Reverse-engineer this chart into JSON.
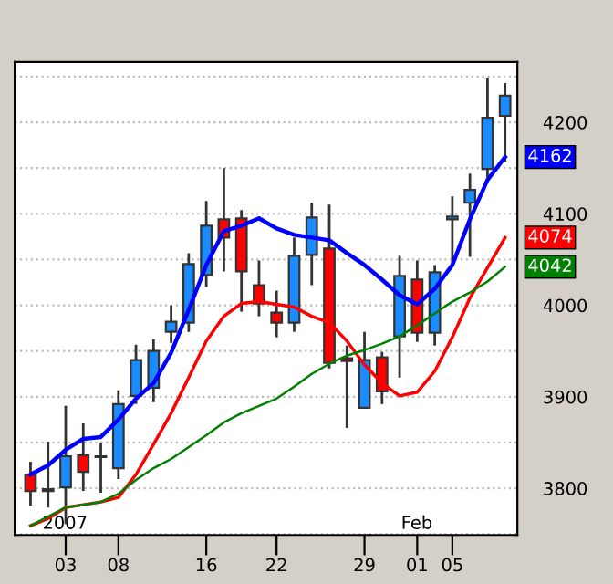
{
  "chart_data": {
    "type": "candlestick",
    "categories": [
      null,
      null,
      "03",
      null,
      null,
      "08",
      null,
      null,
      null,
      null,
      "16",
      null,
      null,
      null,
      "22",
      null,
      null,
      null,
      null,
      "29",
      null,
      null,
      "01",
      null,
      "05",
      null,
      null,
      null
    ],
    "ohlc": [
      [
        3815,
        3829,
        3781,
        3797
      ],
      [
        3799,
        3851,
        3779,
        3797
      ],
      [
        3801,
        3890,
        3761,
        3835
      ],
      [
        3836,
        3871,
        3797,
        3818
      ],
      [
        3835,
        3850,
        3795,
        3834
      ],
      [
        3822,
        3907,
        3810,
        3892
      ],
      [
        3901,
        3957,
        3892,
        3940
      ],
      [
        3910,
        3963,
        3894,
        3950
      ],
      [
        3971,
        4000,
        3959,
        3982
      ],
      [
        3981,
        4057,
        3971,
        4045
      ],
      [
        4033,
        4114,
        4020,
        4087
      ],
      [
        4094,
        4150,
        4037,
        4074
      ],
      [
        4095,
        4104,
        3993,
        4037
      ],
      [
        4022,
        4049,
        3988,
        4002
      ],
      [
        3992,
        4016,
        3965,
        3981
      ],
      [
        3981,
        4074,
        3971,
        4054
      ],
      [
        4055,
        4112,
        4022,
        4096
      ],
      [
        4062,
        4110,
        3931,
        3937
      ],
      [
        3942,
        3956,
        3866,
        3939
      ],
      [
        3888,
        3971,
        3887,
        3940
      ],
      [
        3943,
        3949,
        3892,
        3906
      ],
      [
        3966,
        4054,
        3921,
        4032
      ],
      [
        4028,
        4049,
        3960,
        3970
      ],
      [
        3970,
        4044,
        3956,
        4036
      ],
      [
        4094,
        4119,
        4044,
        4097
      ],
      [
        4112,
        4144,
        4053,
        4126
      ],
      [
        4149,
        4248,
        4140,
        4205
      ],
      [
        4207,
        4243,
        4157,
        4229
      ]
    ],
    "colors": [
      "#ff0000",
      "#ff0000",
      "#1a8cff",
      "#ff0000",
      "#ff0000",
      "#1a8cff",
      "#1a8cff",
      "#1a8cff",
      "#1a8cff",
      "#1a8cff",
      "#1a8cff",
      "#ff0000",
      "#ff0000",
      "#ff0000",
      "#ff0000",
      "#1a8cff",
      "#1a8cff",
      "#ff0000",
      "#ff0000",
      "#1a8cff",
      "#ff0000",
      "#1a8cff",
      "#ff0000",
      "#1a8cff",
      "#1a8cff",
      "#1a8cff",
      "#1a8cff",
      "#1a8cff"
    ],
    "series": [
      {
        "type": "line",
        "color": "#0000ff",
        "values": [
          3815,
          3825,
          3842,
          3854,
          3856,
          3875,
          3898,
          3915,
          3948,
          3995,
          4044,
          4081,
          4087,
          4095,
          4084,
          4077,
          4074,
          4071,
          4057,
          4044,
          4028,
          4011,
          4001,
          4018,
          4044,
          4094,
          4137,
          4162
        ],
        "value_labels": [
          null,
          null,
          null,
          null,
          null,
          null,
          null,
          null,
          null,
          null,
          null,
          null,
          null,
          null,
          null,
          null,
          null,
          null,
          null,
          null,
          null,
          null,
          null,
          null,
          null,
          null,
          null,
          "4162"
        ]
      },
      {
        "type": "line",
        "color": "#ff0000",
        "values": [
          3759,
          3767,
          3779,
          3782,
          3785,
          3790,
          3815,
          3848,
          3882,
          3921,
          3961,
          3988,
          4002,
          4004,
          4001,
          3998,
          3988,
          3981,
          3961,
          3935,
          3915,
          3901,
          3905,
          3928,
          3965,
          4008,
          4041,
          4074
        ],
        "value_labels": [
          null,
          null,
          null,
          null,
          null,
          null,
          null,
          null,
          null,
          null,
          null,
          null,
          null,
          null,
          null,
          null,
          null,
          null,
          null,
          null,
          null,
          null,
          null,
          null,
          null,
          null,
          null,
          "4074"
        ]
      },
      {
        "type": "line",
        "color": "#008000",
        "values": [
          3759,
          3769,
          3779,
          3782,
          3785,
          3794,
          3809,
          3822,
          3832,
          3845,
          3858,
          3872,
          3882,
          3890,
          3898,
          3911,
          3925,
          3936,
          3945,
          3951,
          3958,
          3966,
          3978,
          3991,
          4004,
          4014,
          4026,
          4042
        ],
        "value_labels": [
          null,
          null,
          null,
          null,
          null,
          null,
          null,
          null,
          null,
          null,
          null,
          null,
          null,
          null,
          null,
          null,
          null,
          null,
          null,
          null,
          null,
          null,
          null,
          null,
          null,
          null,
          null,
          "4042"
        ]
      }
    ],
    "ylim": [
      3749,
      4266
    ],
    "yticks": [
      {
        "value": 3750,
        "label": null
      },
      3800,
      {
        "value": 3850,
        "label": null
      },
      3900,
      {
        "value": 3950,
        "label": null
      },
      4000,
      {
        "value": 4050,
        "label": null
      },
      4100,
      {
        "value": 4150,
        "label": null
      },
      4200,
      {
        "value": 4250,
        "label": null
      }
    ],
    "grid": "y",
    "annotations": [
      "2007",
      "Feb"
    ]
  }
}
